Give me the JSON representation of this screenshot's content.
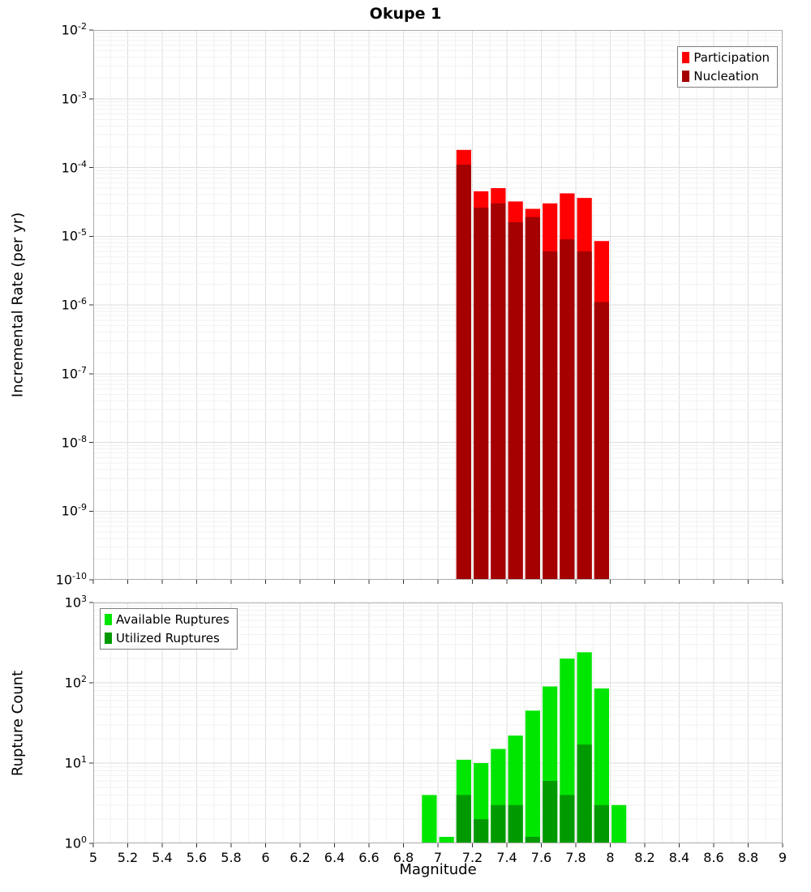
{
  "figure": {
    "title": "Okupe 1"
  },
  "chart_data": [
    {
      "type": "bar",
      "title": "Okupe 1",
      "ylabel": "Incremental Rate (per yr)",
      "xlabel": "",
      "yscale": "log",
      "ylim": [
        1e-10,
        0.01
      ],
      "xlim": [
        5,
        9
      ],
      "grid": true,
      "bin_width": 0.1,
      "bin_starts": [
        7.1,
        7.2,
        7.3,
        7.4,
        7.5,
        7.6,
        7.7,
        7.8,
        7.9
      ],
      "series": [
        {
          "name": "Participation",
          "color": "#ff0000",
          "values": [
            0.00018,
            4.5e-05,
            5e-05,
            3.2e-05,
            2.5e-05,
            3e-05,
            4.2e-05,
            3.6e-05,
            8.5e-06
          ]
        },
        {
          "name": "Nucleation",
          "color": "#a40000",
          "values": [
            0.00011,
            2.6e-05,
            3e-05,
            1.6e-05,
            1.9e-05,
            6e-06,
            9e-06,
            6e-06,
            1.1e-06
          ]
        }
      ],
      "legend": {
        "position": "top-right",
        "entries": [
          {
            "label": "Participation",
            "color": "#ff0000"
          },
          {
            "label": "Nucleation",
            "color": "#a40000"
          }
        ]
      },
      "ytick_exponents": [
        -2,
        -3,
        -4,
        -5,
        -6,
        -7,
        -8,
        -9,
        -10
      ],
      "xtick_step": 0.2,
      "xtick_labels": [
        "5",
        "5.2",
        "5.4",
        "5.6",
        "5.8",
        "6",
        "6.2",
        "6.4",
        "6.6",
        "6.8",
        "7",
        "7.2",
        "7.4",
        "7.6",
        "7.8",
        "8",
        "8.2",
        "8.4",
        "8.6",
        "8.8",
        "9"
      ],
      "show_x_tick_labels": false
    },
    {
      "type": "bar",
      "title": "",
      "ylabel": "Rupture Count",
      "xlabel": "Magnitude",
      "yscale": "log",
      "ylim": [
        1,
        1000
      ],
      "xlim": [
        5,
        9
      ],
      "grid": true,
      "bin_width": 0.1,
      "bin_starts": [
        6.9,
        7.0,
        7.1,
        7.2,
        7.3,
        7.4,
        7.5,
        7.6,
        7.7,
        7.8,
        7.9,
        8.0
      ],
      "series": [
        {
          "name": "Available Ruptures",
          "color": "#00e600",
          "values": [
            4,
            1,
            11,
            10,
            15,
            22,
            45,
            90,
            200,
            240,
            85,
            3
          ]
        },
        {
          "name": "Utilized Ruptures",
          "color": "#009a00",
          "values": [
            0,
            0,
            4,
            2,
            3,
            3,
            1,
            6,
            4,
            17,
            3,
            0
          ]
        }
      ],
      "legend": {
        "position": "top-left",
        "entries": [
          {
            "label": "Available Ruptures",
            "color": "#00e600"
          },
          {
            "label": "Utilized Ruptures",
            "color": "#009a00"
          }
        ]
      },
      "ytick_exponents": [
        0,
        1,
        2,
        3
      ],
      "xtick_step": 0.2,
      "xtick_labels": [
        "5",
        "5.2",
        "5.4",
        "5.6",
        "5.8",
        "6",
        "6.2",
        "6.4",
        "6.6",
        "6.8",
        "7",
        "7.2",
        "7.4",
        "7.6",
        "7.8",
        "8",
        "8.2",
        "8.4",
        "8.6",
        "8.8",
        "9"
      ],
      "show_x_tick_labels": true
    }
  ]
}
